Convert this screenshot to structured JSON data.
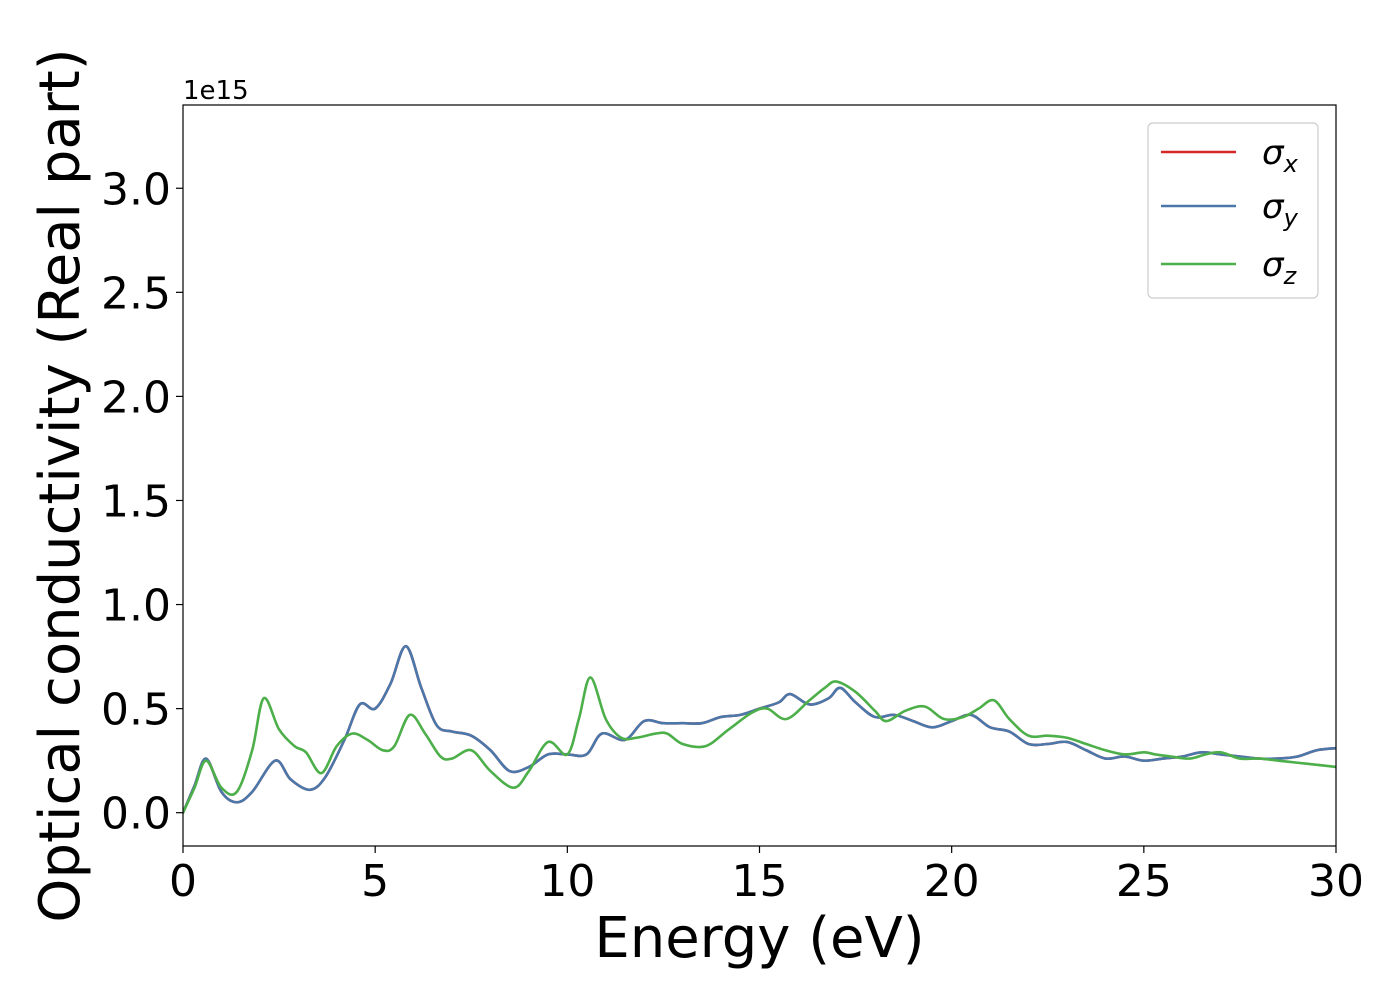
{
  "chart_data": {
    "type": "line",
    "xlabel": "Energy (eV)",
    "ylabel": "Optical conductivity (Real part)",
    "y_offset_label": "1e15",
    "xlim": [
      0,
      30
    ],
    "ylim": [
      -0.16,
      3.4
    ],
    "y_unit_scale": "1e15",
    "x_ticks": [
      0,
      5,
      10,
      15,
      20,
      25,
      30
    ],
    "x_tick_labels": [
      "0",
      "5",
      "10",
      "15",
      "20",
      "25",
      "30"
    ],
    "y_ticks": [
      0.0,
      0.5,
      1.0,
      1.5,
      2.0,
      2.5,
      3.0
    ],
    "y_tick_labels": [
      "0.0",
      "0.5",
      "1.0",
      "1.5",
      "2.0",
      "2.5",
      "3.0"
    ],
    "grid": false,
    "legend_position": "top-right",
    "series": [
      {
        "name": "σx",
        "symbol": "σ",
        "subscript": "x",
        "color": "#d62728",
        "x": [
          0,
          0.3,
          0.6,
          1.0,
          1.4,
          1.8,
          2.4,
          2.8,
          3.3,
          3.7,
          4.2,
          4.6,
          5.0,
          5.4,
          5.8,
          6.2,
          6.6,
          7.0,
          7.5,
          8.0,
          8.5,
          9.0,
          9.5,
          10.0,
          10.5,
          10.9,
          11.5,
          12.0,
          12.5,
          13.0,
          13.5,
          14.0,
          14.5,
          15.0,
          15.5,
          15.8,
          16.3,
          16.8,
          17.1,
          17.5,
          18.0,
          18.5,
          19.0,
          19.5,
          20.0,
          20.5,
          21.0,
          21.5,
          22.0,
          22.5,
          23.0,
          23.5,
          24.0,
          24.5,
          25.0,
          25.5,
          26.0,
          26.5,
          27.0,
          27.5,
          28.0,
          28.5,
          29.0,
          29.5,
          30.0
        ],
        "y": [
          0.0,
          0.13,
          0.26,
          0.1,
          0.05,
          0.1,
          0.25,
          0.16,
          0.11,
          0.17,
          0.35,
          0.52,
          0.5,
          0.62,
          0.8,
          0.6,
          0.42,
          0.39,
          0.37,
          0.3,
          0.2,
          0.22,
          0.28,
          0.28,
          0.28,
          0.38,
          0.35,
          0.44,
          0.43,
          0.43,
          0.43,
          0.46,
          0.47,
          0.5,
          0.53,
          0.57,
          0.52,
          0.55,
          0.6,
          0.53,
          0.46,
          0.47,
          0.44,
          0.41,
          0.44,
          0.47,
          0.41,
          0.39,
          0.33,
          0.33,
          0.34,
          0.3,
          0.26,
          0.27,
          0.25,
          0.26,
          0.27,
          0.29,
          0.28,
          0.27,
          0.26,
          0.26,
          0.27,
          0.3,
          0.31
        ]
      },
      {
        "name": "σy",
        "symbol": "σ",
        "subscript": "y",
        "color": "#4a78aa",
        "x": [
          0,
          0.3,
          0.6,
          1.0,
          1.4,
          1.8,
          2.4,
          2.8,
          3.3,
          3.7,
          4.2,
          4.6,
          5.0,
          5.4,
          5.8,
          6.2,
          6.6,
          7.0,
          7.5,
          8.0,
          8.5,
          9.0,
          9.5,
          10.0,
          10.5,
          10.9,
          11.5,
          12.0,
          12.5,
          13.0,
          13.5,
          14.0,
          14.5,
          15.0,
          15.5,
          15.8,
          16.3,
          16.8,
          17.1,
          17.5,
          18.0,
          18.5,
          19.0,
          19.5,
          20.0,
          20.5,
          21.0,
          21.5,
          22.0,
          22.5,
          23.0,
          23.5,
          24.0,
          24.5,
          25.0,
          25.5,
          26.0,
          26.5,
          27.0,
          27.5,
          28.0,
          28.5,
          29.0,
          29.5,
          30.0
        ],
        "y": [
          0.0,
          0.13,
          0.26,
          0.1,
          0.05,
          0.1,
          0.25,
          0.16,
          0.11,
          0.17,
          0.35,
          0.52,
          0.5,
          0.62,
          0.8,
          0.6,
          0.42,
          0.39,
          0.37,
          0.3,
          0.2,
          0.22,
          0.28,
          0.28,
          0.28,
          0.38,
          0.35,
          0.44,
          0.43,
          0.43,
          0.43,
          0.46,
          0.47,
          0.5,
          0.53,
          0.57,
          0.52,
          0.55,
          0.6,
          0.53,
          0.46,
          0.47,
          0.44,
          0.41,
          0.44,
          0.47,
          0.41,
          0.39,
          0.33,
          0.33,
          0.34,
          0.3,
          0.26,
          0.27,
          0.25,
          0.26,
          0.27,
          0.29,
          0.28,
          0.27,
          0.26,
          0.26,
          0.27,
          0.3,
          0.31
        ]
      },
      {
        "name": "σz",
        "symbol": "σ",
        "subscript": "z",
        "color": "#4daf4a",
        "x": [
          0,
          0.3,
          0.6,
          1.0,
          1.4,
          1.8,
          2.1,
          2.5,
          2.9,
          3.2,
          3.6,
          4.0,
          4.4,
          4.8,
          5.2,
          5.5,
          5.9,
          6.3,
          6.7,
          7.0,
          7.5,
          8.0,
          8.6,
          9.0,
          9.5,
          10.0,
          10.3,
          10.6,
          11.0,
          11.4,
          11.8,
          12.3,
          12.6,
          13.0,
          13.6,
          14.2,
          14.8,
          15.2,
          15.7,
          16.3,
          16.7,
          17.0,
          17.5,
          18.0,
          18.3,
          18.8,
          19.3,
          19.8,
          20.3,
          20.7,
          21.1,
          21.5,
          22.0,
          22.5,
          23.0,
          23.5,
          24.0,
          24.5,
          25.0,
          25.3,
          25.7,
          26.2,
          26.6,
          27.0,
          27.5,
          28.0,
          28.5,
          29.0,
          29.5,
          30.0
        ],
        "y": [
          0.0,
          0.12,
          0.25,
          0.12,
          0.1,
          0.3,
          0.55,
          0.4,
          0.32,
          0.29,
          0.19,
          0.32,
          0.38,
          0.35,
          0.3,
          0.32,
          0.47,
          0.38,
          0.27,
          0.26,
          0.3,
          0.2,
          0.12,
          0.2,
          0.34,
          0.28,
          0.45,
          0.65,
          0.45,
          0.36,
          0.36,
          0.38,
          0.38,
          0.33,
          0.32,
          0.4,
          0.48,
          0.5,
          0.45,
          0.54,
          0.6,
          0.63,
          0.58,
          0.49,
          0.44,
          0.49,
          0.51,
          0.45,
          0.46,
          0.5,
          0.54,
          0.45,
          0.37,
          0.37,
          0.36,
          0.33,
          0.3,
          0.28,
          0.29,
          0.28,
          0.27,
          0.26,
          0.28,
          0.29,
          0.26,
          0.26,
          0.25,
          0.24,
          0.23,
          0.22
        ]
      }
    ]
  }
}
